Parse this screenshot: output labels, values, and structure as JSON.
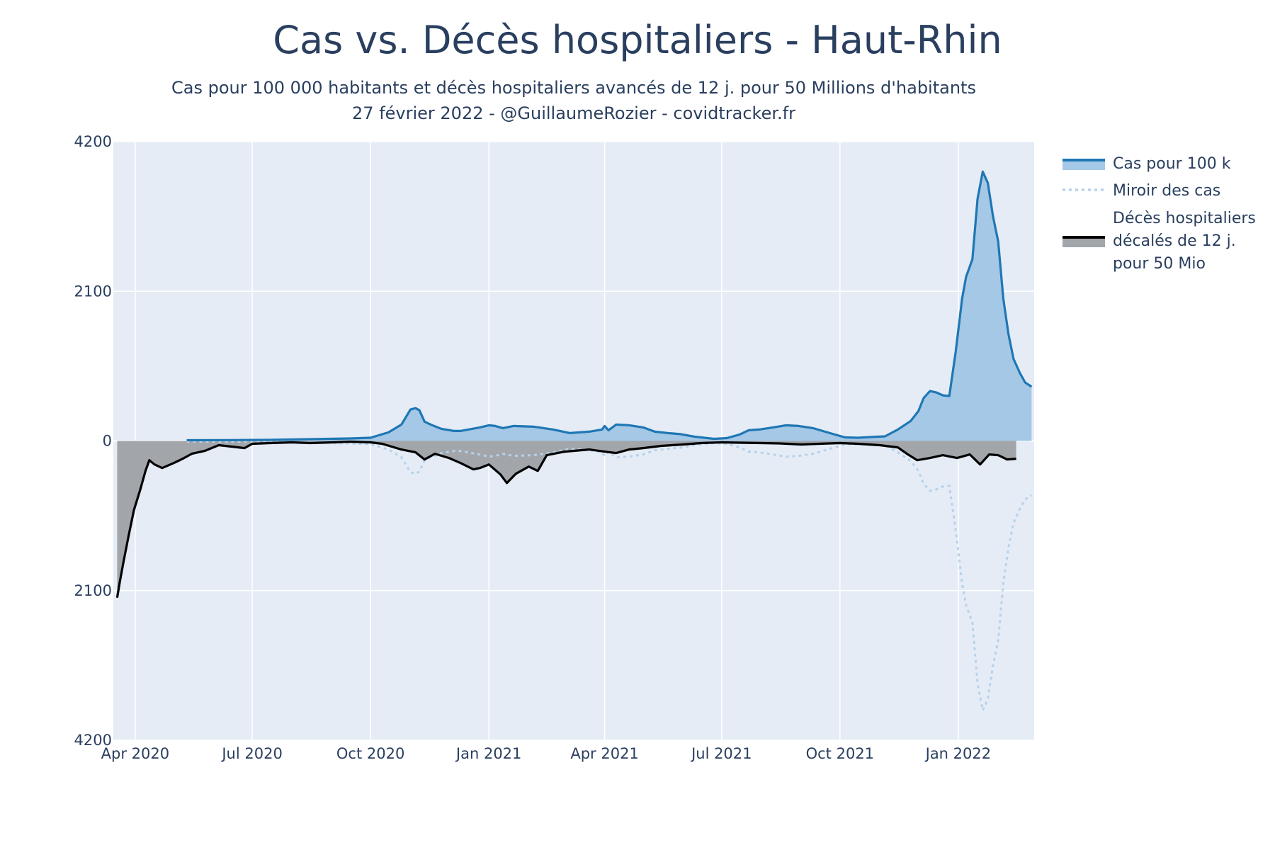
{
  "chart_data": {
    "type": "area",
    "title": "Cas vs. Décès hospitaliers - Haut-Rhin",
    "subtitle_line1": "Cas pour 100 000 habitants et décès hospitaliers avancés de 12 j. pour 50 Millions d'habitants",
    "subtitle_line2": "27 février 2022 - @GuillaumeRozier - covidtracker.fr",
    "xlabel": "",
    "ylabel": "",
    "x_range": [
      "2020-03-15",
      "2022-03-01"
    ],
    "y_range": [
      -4200,
      4200
    ],
    "y_ticks": [
      {
        "value": 4200,
        "label": "4200"
      },
      {
        "value": 2100,
        "label": "2100"
      },
      {
        "value": 0,
        "label": "0"
      },
      {
        "value": -2100,
        "label": "2100"
      },
      {
        "value": -4200,
        "label": "4200"
      }
    ],
    "x_ticks": [
      {
        "date": "2020-04-01",
        "label": "Apr 2020"
      },
      {
        "date": "2020-07-01",
        "label": "Jul 2020"
      },
      {
        "date": "2020-10-01",
        "label": "Oct 2020"
      },
      {
        "date": "2021-01-01",
        "label": "Jan 2021"
      },
      {
        "date": "2021-04-01",
        "label": "Apr 2021"
      },
      {
        "date": "2021-07-01",
        "label": "Jul 2021"
      },
      {
        "date": "2021-10-01",
        "label": "Oct 2021"
      },
      {
        "date": "2022-01-01",
        "label": "Jan 2022"
      }
    ],
    "grid": true,
    "legend_position": "right",
    "colors": {
      "cases_line": "#1f77b4",
      "cases_fill": "#a5c8e6",
      "mirror_line": "#b6d2eb",
      "deaths_line": "#000000",
      "deaths_fill": "#a2a5aa",
      "plot_bg": "#e5ecf6",
      "grid": "#ffffff"
    },
    "series": [
      {
        "name": "Cas pour 100 k",
        "legend_label": [
          "Cas pour 100 k"
        ],
        "points": [
          [
            "2020-05-11",
            10
          ],
          [
            "2020-06-15",
            12
          ],
          [
            "2020-07-15",
            15
          ],
          [
            "2020-08-15",
            25
          ],
          [
            "2020-09-15",
            35
          ],
          [
            "2020-10-01",
            45
          ],
          [
            "2020-10-15",
            120
          ],
          [
            "2020-10-25",
            230
          ],
          [
            "2020-11-01",
            440
          ],
          [
            "2020-11-05",
            460
          ],
          [
            "2020-11-08",
            430
          ],
          [
            "2020-11-12",
            270
          ],
          [
            "2020-11-18",
            220
          ],
          [
            "2020-11-25",
            170
          ],
          [
            "2020-12-05",
            140
          ],
          [
            "2020-12-10",
            140
          ],
          [
            "2020-12-25",
            190
          ],
          [
            "2021-01-01",
            220
          ],
          [
            "2021-01-06",
            210
          ],
          [
            "2021-01-12",
            180
          ],
          [
            "2021-01-20",
            210
          ],
          [
            "2021-02-05",
            200
          ],
          [
            "2021-02-20",
            160
          ],
          [
            "2021-03-05",
            110
          ],
          [
            "2021-03-20",
            130
          ],
          [
            "2021-03-30",
            160
          ],
          [
            "2021-04-01",
            210
          ],
          [
            "2021-04-04",
            150
          ],
          [
            "2021-04-10",
            230
          ],
          [
            "2021-04-20",
            220
          ],
          [
            "2021-05-01",
            190
          ],
          [
            "2021-05-10",
            130
          ],
          [
            "2021-05-20",
            110
          ],
          [
            "2021-05-30",
            95
          ],
          [
            "2021-06-10",
            60
          ],
          [
            "2021-06-25",
            30
          ],
          [
            "2021-07-05",
            40
          ],
          [
            "2021-07-15",
            90
          ],
          [
            "2021-07-22",
            150
          ],
          [
            "2021-07-30",
            160
          ],
          [
            "2021-08-10",
            190
          ],
          [
            "2021-08-20",
            220
          ],
          [
            "2021-08-30",
            210
          ],
          [
            "2021-09-10",
            180
          ],
          [
            "2021-09-25",
            100
          ],
          [
            "2021-10-05",
            50
          ],
          [
            "2021-10-15",
            45
          ],
          [
            "2021-10-25",
            55
          ],
          [
            "2021-11-05",
            65
          ],
          [
            "2021-11-15",
            160
          ],
          [
            "2021-11-25",
            280
          ],
          [
            "2021-12-01",
            420
          ],
          [
            "2021-12-05",
            600
          ],
          [
            "2021-12-10",
            700
          ],
          [
            "2021-12-15",
            680
          ],
          [
            "2021-12-20",
            640
          ],
          [
            "2021-12-25",
            630
          ],
          [
            "2021-12-30",
            1250
          ],
          [
            "2022-01-04",
            2000
          ],
          [
            "2022-01-07",
            2300
          ],
          [
            "2022-01-12",
            2550
          ],
          [
            "2022-01-16",
            3400
          ],
          [
            "2022-01-20",
            3780
          ],
          [
            "2022-01-24",
            3620
          ],
          [
            "2022-01-28",
            3150
          ],
          [
            "2022-02-01",
            2800
          ],
          [
            "2022-02-05",
            2000
          ],
          [
            "2022-02-09",
            1500
          ],
          [
            "2022-02-13",
            1150
          ],
          [
            "2022-02-18",
            950
          ],
          [
            "2022-02-22",
            820
          ],
          [
            "2022-02-27",
            760
          ]
        ]
      },
      {
        "name": "Miroir des cas",
        "legend_label": [
          "Miroir des cas"
        ]
      },
      {
        "name": "Décès hospitaliers décalés de 12 j. pour 50 Mio",
        "legend_label": [
          "Décès hospitaliers",
          "décalés de 12 j.",
          "pour 50 Mio"
        ],
        "points": [
          [
            "2020-03-18",
            -2200
          ],
          [
            "2020-03-20",
            -1980
          ],
          [
            "2020-03-23",
            -1690
          ],
          [
            "2020-03-27",
            -1320
          ],
          [
            "2020-03-31",
            -970
          ],
          [
            "2020-04-05",
            -680
          ],
          [
            "2020-04-09",
            -420
          ],
          [
            "2020-04-12",
            -270
          ],
          [
            "2020-04-16",
            -330
          ],
          [
            "2020-04-22",
            -380
          ],
          [
            "2020-05-01",
            -310
          ],
          [
            "2020-05-08",
            -250
          ],
          [
            "2020-05-15",
            -180
          ],
          [
            "2020-05-25",
            -140
          ],
          [
            "2020-06-05",
            -60
          ],
          [
            "2020-06-15",
            -80
          ],
          [
            "2020-06-25",
            -100
          ],
          [
            "2020-07-01",
            -40
          ],
          [
            "2020-07-15",
            -30
          ],
          [
            "2020-08-01",
            -20
          ],
          [
            "2020-08-15",
            -30
          ],
          [
            "2020-09-01",
            -20
          ],
          [
            "2020-09-15",
            -10
          ],
          [
            "2020-10-01",
            -20
          ],
          [
            "2020-10-10",
            -40
          ],
          [
            "2020-10-25",
            -120
          ],
          [
            "2020-11-05",
            -160
          ],
          [
            "2020-11-12",
            -260
          ],
          [
            "2020-11-20",
            -180
          ],
          [
            "2020-12-01",
            -240
          ],
          [
            "2020-12-10",
            -310
          ],
          [
            "2020-12-20",
            -400
          ],
          [
            "2020-12-25",
            -380
          ],
          [
            "2021-01-01",
            -330
          ],
          [
            "2021-01-10",
            -470
          ],
          [
            "2021-01-15",
            -590
          ],
          [
            "2021-01-22",
            -460
          ],
          [
            "2021-02-01",
            -360
          ],
          [
            "2021-02-08",
            -420
          ],
          [
            "2021-02-15",
            -200
          ],
          [
            "2021-03-01",
            -150
          ],
          [
            "2021-03-20",
            -120
          ],
          [
            "2021-04-01",
            -150
          ],
          [
            "2021-04-10",
            -170
          ],
          [
            "2021-04-20",
            -120
          ],
          [
            "2021-05-01",
            -100
          ],
          [
            "2021-05-15",
            -70
          ],
          [
            "2021-06-01",
            -50
          ],
          [
            "2021-06-15",
            -30
          ],
          [
            "2021-07-01",
            -20
          ],
          [
            "2021-07-15",
            -25
          ],
          [
            "2021-08-01",
            -30
          ],
          [
            "2021-08-15",
            -35
          ],
          [
            "2021-09-01",
            -50
          ],
          [
            "2021-09-15",
            -40
          ],
          [
            "2021-10-01",
            -30
          ],
          [
            "2021-10-15",
            -40
          ],
          [
            "2021-11-01",
            -60
          ],
          [
            "2021-11-15",
            -90
          ],
          [
            "2021-11-22",
            -180
          ],
          [
            "2021-11-30",
            -270
          ],
          [
            "2021-12-10",
            -240
          ],
          [
            "2021-12-20",
            -200
          ],
          [
            "2021-12-31",
            -240
          ],
          [
            "2022-01-10",
            -190
          ],
          [
            "2022-01-18",
            -330
          ],
          [
            "2022-01-25",
            -190
          ],
          [
            "2022-02-01",
            -200
          ],
          [
            "2022-02-08",
            -260
          ],
          [
            "2022-02-15",
            -250
          ]
        ]
      }
    ]
  }
}
